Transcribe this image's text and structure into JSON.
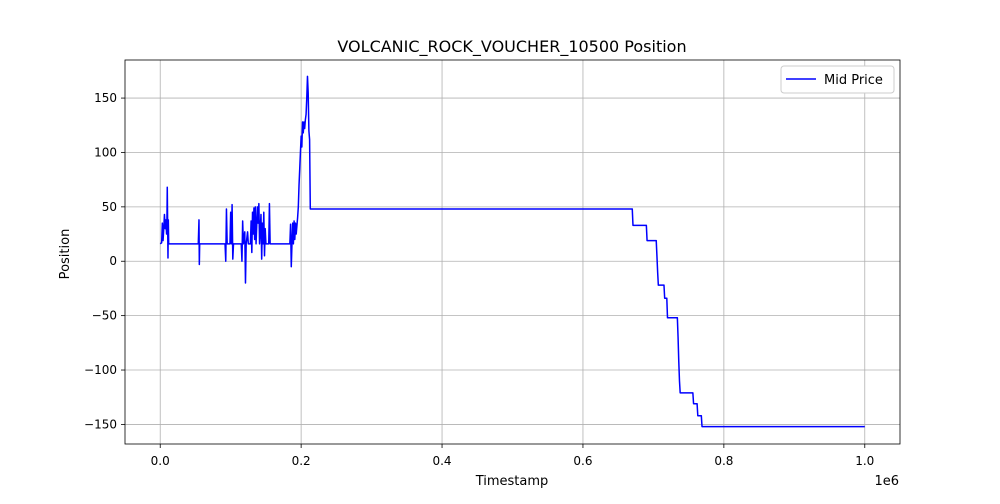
{
  "chart_data": {
    "type": "line",
    "title": "VOLCANIC_ROCK_VOUCHER_10500 Position",
    "xlabel": "Timestamp",
    "ylabel": "Position",
    "x_scale_label": "1e6",
    "x_ticks": [
      0.0,
      0.2,
      0.4,
      0.6,
      0.8,
      1.0
    ],
    "x_tick_labels": [
      "0.0",
      "0.2",
      "0.4",
      "0.6",
      "0.8",
      "1.0"
    ],
    "y_ticks": [
      -150,
      -100,
      -50,
      0,
      50,
      100,
      150
    ],
    "y_tick_labels": [
      "−150",
      "−100",
      "−50",
      "0",
      "50",
      "100",
      "150"
    ],
    "xlim": [
      -0.05,
      1.05
    ],
    "ylim": [
      -168,
      185
    ],
    "grid": true,
    "legend_position": "top-right",
    "series": [
      {
        "name": "Mid Price",
        "color": "#0000ff",
        "points": [
          [
            0.0,
            16
          ],
          [
            0.002,
            17
          ],
          [
            0.003,
            35
          ],
          [
            0.004,
            19
          ],
          [
            0.005,
            30
          ],
          [
            0.006,
            43
          ],
          [
            0.007,
            30
          ],
          [
            0.008,
            38
          ],
          [
            0.009,
            25
          ],
          [
            0.0095,
            36
          ],
          [
            0.01,
            68
          ],
          [
            0.0105,
            35
          ],
          [
            0.011,
            3
          ],
          [
            0.0115,
            38
          ],
          [
            0.012,
            16
          ],
          [
            0.054,
            16
          ],
          [
            0.055,
            38
          ],
          [
            0.0555,
            -3
          ],
          [
            0.056,
            16
          ],
          [
            0.092,
            16
          ],
          [
            0.093,
            0
          ],
          [
            0.094,
            48
          ],
          [
            0.095,
            16
          ],
          [
            0.099,
            16
          ],
          [
            0.1,
            45
          ],
          [
            0.101,
            16
          ],
          [
            0.102,
            52
          ],
          [
            0.103,
            2
          ],
          [
            0.104,
            16
          ],
          [
            0.115,
            16
          ],
          [
            0.116,
            0
          ],
          [
            0.117,
            37
          ],
          [
            0.118,
            16
          ],
          [
            0.12,
            27
          ],
          [
            0.121,
            -20
          ],
          [
            0.122,
            16
          ],
          [
            0.124,
            27
          ],
          [
            0.125,
            16
          ],
          [
            0.128,
            16
          ],
          [
            0.129,
            37
          ],
          [
            0.13,
            8
          ],
          [
            0.131,
            45
          ],
          [
            0.132,
            25
          ],
          [
            0.133,
            49
          ],
          [
            0.134,
            20
          ],
          [
            0.135,
            50
          ],
          [
            0.136,
            16
          ],
          [
            0.138,
            50
          ],
          [
            0.139,
            35
          ],
          [
            0.14,
            53
          ],
          [
            0.141,
            16
          ],
          [
            0.143,
            43
          ],
          [
            0.144,
            2
          ],
          [
            0.145,
            35
          ],
          [
            0.146,
            16
          ],
          [
            0.147,
            45
          ],
          [
            0.148,
            5
          ],
          [
            0.149,
            30
          ],
          [
            0.15,
            16
          ],
          [
            0.154,
            16
          ],
          [
            0.155,
            53
          ],
          [
            0.156,
            16
          ],
          [
            0.184,
            16
          ],
          [
            0.185,
            34
          ],
          [
            0.186,
            -5
          ],
          [
            0.187,
            16
          ],
          [
            0.188,
            35
          ],
          [
            0.189,
            16
          ],
          [
            0.19,
            37
          ],
          [
            0.191,
            20
          ],
          [
            0.192,
            35
          ],
          [
            0.193,
            25
          ],
          [
            0.195,
            40
          ],
          [
            0.196,
            50
          ],
          [
            0.197,
            70
          ],
          [
            0.198,
            85
          ],
          [
            0.199,
            100
          ],
          [
            0.2,
            115
          ],
          [
            0.201,
            105
          ],
          [
            0.202,
            128
          ],
          [
            0.203,
            118
          ],
          [
            0.204,
            128
          ],
          [
            0.205,
            122
          ],
          [
            0.206,
            130
          ],
          [
            0.207,
            135
          ],
          [
            0.208,
            150
          ],
          [
            0.209,
            170
          ],
          [
            0.21,
            155
          ],
          [
            0.211,
            120
          ],
          [
            0.212,
            112
          ],
          [
            0.213,
            48
          ],
          [
            0.67,
            48
          ],
          [
            0.671,
            33
          ],
          [
            0.69,
            33
          ],
          [
            0.691,
            19
          ],
          [
            0.704,
            19
          ],
          [
            0.705,
            5
          ],
          [
            0.706,
            -10
          ],
          [
            0.707,
            -22
          ],
          [
            0.715,
            -22
          ],
          [
            0.716,
            -34
          ],
          [
            0.719,
            -34
          ],
          [
            0.72,
            -52
          ],
          [
            0.734,
            -52
          ],
          [
            0.735,
            -70
          ],
          [
            0.736,
            -92
          ],
          [
            0.737,
            -110
          ],
          [
            0.738,
            -121
          ],
          [
            0.756,
            -121
          ],
          [
            0.757,
            -131
          ],
          [
            0.762,
            -131
          ],
          [
            0.763,
            -142
          ],
          [
            0.768,
            -142
          ],
          [
            0.769,
            -152
          ],
          [
            1.0,
            -152
          ]
        ]
      }
    ]
  }
}
